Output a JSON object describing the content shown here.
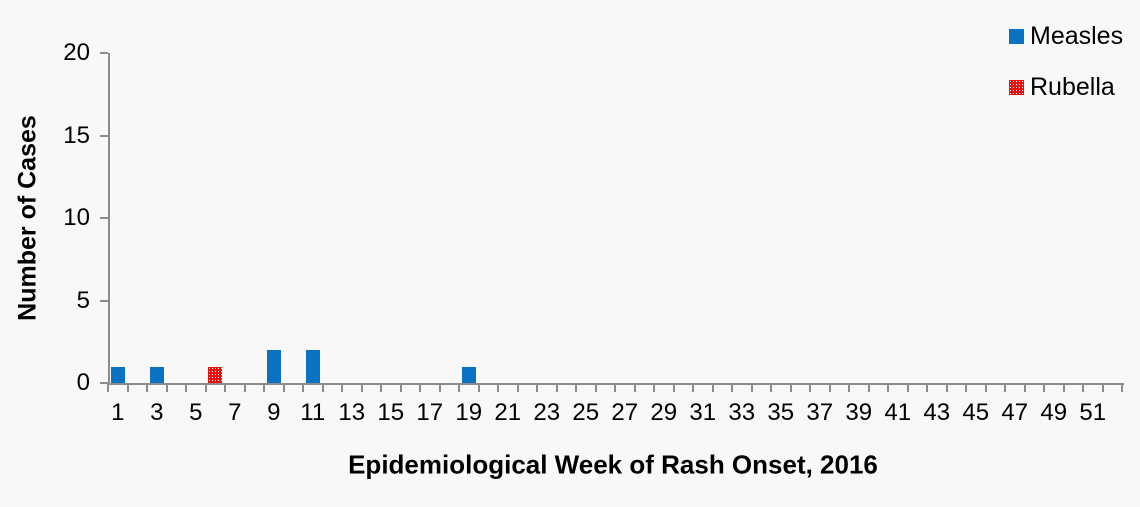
{
  "chart_data": {
    "type": "bar",
    "title": "",
    "xlabel": "Epidemiological Week of Rash Onset, 2016",
    "ylabel": "Number of Cases",
    "weeks_total": 52,
    "x_tick_labels": [
      1,
      3,
      5,
      7,
      9,
      11,
      13,
      15,
      17,
      19,
      21,
      23,
      25,
      27,
      29,
      31,
      33,
      35,
      37,
      39,
      41,
      43,
      45,
      47,
      49,
      51
    ],
    "y_ticks": [
      0,
      5,
      10,
      15,
      20
    ],
    "ylim": [
      0,
      20
    ],
    "grid": false,
    "legend_position": "top-right",
    "series": [
      {
        "name": "Measles",
        "color": "#0a72c2",
        "fill_style": "solid",
        "points": {
          "1": 1,
          "3": 1,
          "9": 2,
          "11": 2,
          "19": 1
        }
      },
      {
        "name": "Rubella",
        "color": "#e8100c",
        "fill_style": "dotted-white-on-red",
        "points": {
          "6": 1
        }
      }
    ]
  },
  "colors": {
    "background": "#f8f8f8",
    "axis": "#8c8c8c",
    "text": "#000000"
  }
}
